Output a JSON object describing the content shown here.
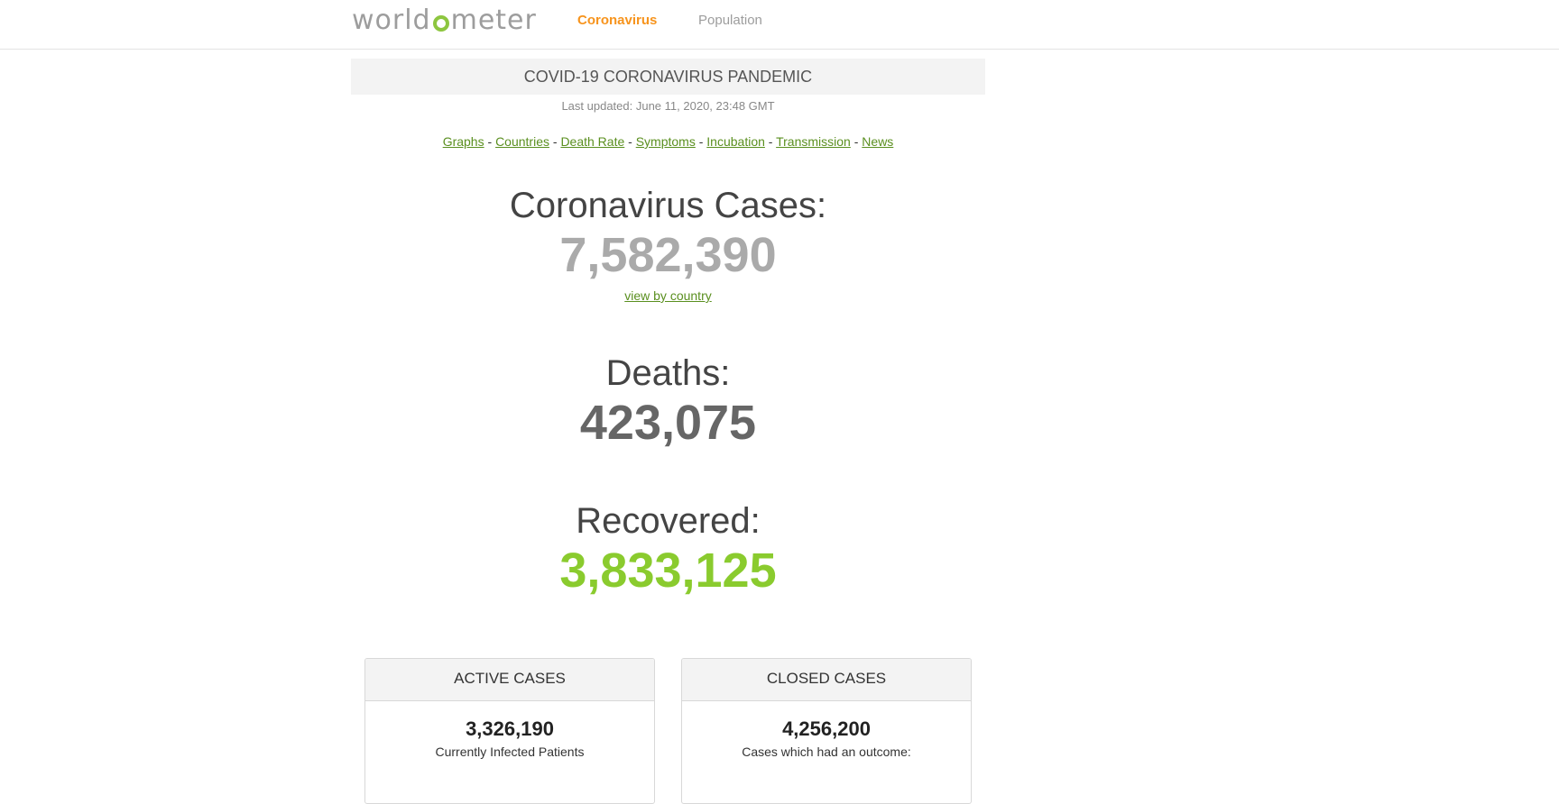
{
  "nav": {
    "logo_text_pre": "worldometer",
    "logo_part1": "world",
    "logo_part2": "meter",
    "links": [
      {
        "label": "Coronavirus"
      },
      {
        "label": "Population"
      }
    ]
  },
  "header": {
    "title": "COVID-19 CORONAVIRUS PANDEMIC",
    "last_updated": "Last updated: June 11, 2020, 23:48 GMT"
  },
  "quick_links": [
    {
      "label": "Graphs"
    },
    {
      "label": "Countries"
    },
    {
      "label": "Death Rate"
    },
    {
      "label": "Symptoms"
    },
    {
      "label": "Incubation"
    },
    {
      "label": "Transmission"
    },
    {
      "label": "News"
    }
  ],
  "separator": " - ",
  "stats": {
    "cases": {
      "label": "Coronavirus Cases:",
      "value": "7,582,390",
      "link": "view by country"
    },
    "deaths": {
      "label": "Deaths:",
      "value": "423,075"
    },
    "recovered": {
      "label": "Recovered:",
      "value": "3,833,125"
    }
  },
  "panels": {
    "active": {
      "header": "ACTIVE CASES",
      "number": "3,326,190",
      "desc": "Currently Infected Patients"
    },
    "closed": {
      "header": "CLOSED CASES",
      "number": "4,256,200",
      "desc": "Cases which had an outcome:"
    }
  },
  "colors": {
    "brand_green": "#8dc63f",
    "nav_active": "#f7941d",
    "cases_gray": "#aaaaaa",
    "deaths_gray": "#666666",
    "recovered_green": "#8acb2e",
    "link_green": "#5a8f1f"
  }
}
